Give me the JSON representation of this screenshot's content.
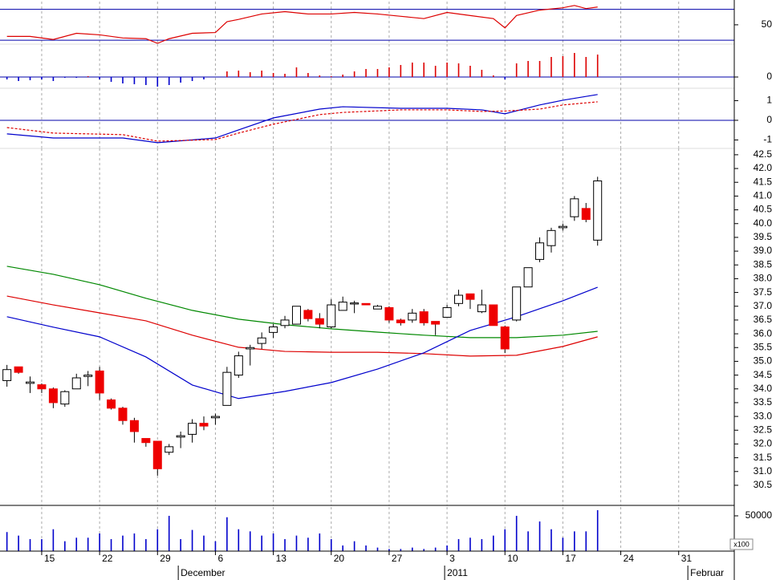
{
  "chart_data": [
    {
      "type": "line",
      "xlim": [
        -0.6,
        62.8
      ],
      "ylim": [
        25,
        80
      ],
      "yticks": [
        50
      ],
      "hlines": [
        70,
        30
      ],
      "hline_color": "#0000aa",
      "x": [
        0,
        2,
        4,
        6,
        8,
        10,
        12,
        13,
        14,
        16,
        18,
        19,
        20,
        22,
        24,
        26,
        28,
        30,
        32,
        34,
        36,
        38,
        40,
        42,
        43,
        44,
        46,
        48,
        49,
        50,
        51
      ],
      "series": [
        {
          "color": "#dd0000",
          "values": [
            35,
            35,
            31,
            39,
            37,
            33,
            32,
            26,
            32,
            39,
            40,
            54,
            57,
            64,
            67,
            64,
            64,
            66,
            64,
            61,
            58,
            66,
            62,
            58,
            46,
            62,
            69,
            72,
            75,
            71,
            73
          ]
        }
      ]
    },
    {
      "type": "bar",
      "xlim": [
        -0.6,
        62.8
      ],
      "ylim": [
        -1.4,
        4.1
      ],
      "yticks": [
        0
      ],
      "hlines": [
        0
      ],
      "hline_color": "#0000aa",
      "up_color": "#dd0000",
      "down_color": "#0000cc",
      "x": [
        0,
        1,
        2,
        3,
        4,
        5,
        6,
        7,
        8,
        9,
        10,
        11,
        12,
        13,
        14,
        15,
        16,
        17,
        18,
        19,
        20,
        21,
        22,
        23,
        24,
        25,
        26,
        27,
        28,
        29,
        30,
        31,
        32,
        33,
        34,
        35,
        36,
        37,
        38,
        39,
        40,
        41,
        42,
        43,
        44,
        45,
        46,
        47,
        48,
        49,
        50,
        51
      ],
      "values": [
        -0.3,
        -0.5,
        -0.4,
        -0.3,
        -0.5,
        -0.1,
        -0.1,
        0.1,
        -0.3,
        -0.6,
        -0.8,
        -0.9,
        -1.0,
        -1.2,
        -1.0,
        -0.7,
        -0.5,
        -0.3,
        0.0,
        0.7,
        0.8,
        0.6,
        0.8,
        0.5,
        0.4,
        1.2,
        0.5,
        0.2,
        0.1,
        0.3,
        0.7,
        1.0,
        1.0,
        1.2,
        1.5,
        1.8,
        1.8,
        1.4,
        1.8,
        1.7,
        1.4,
        0.9,
        0.2,
        -0.3,
        1.7,
        2.0,
        2.0,
        2.5,
        2.6,
        3.0,
        2.5,
        2.8
      ]
    },
    {
      "type": "line",
      "xlim": [
        -0.6,
        62.8
      ],
      "ylim": [
        -1.43,
        1.63
      ],
      "yticks": [
        -1,
        0,
        1
      ],
      "hlines": [
        0
      ],
      "hline_color": "#0000aa",
      "x": [
        0,
        4,
        10,
        13,
        18,
        20,
        23,
        27,
        29,
        34,
        38,
        41,
        43,
        46,
        48,
        51
      ],
      "series": [
        {
          "color": "#0000cc",
          "values": [
            -0.69,
            -0.9,
            -0.9,
            -1.14,
            -0.9,
            -0.49,
            0.12,
            0.57,
            0.69,
            0.61,
            0.61,
            0.53,
            0.33,
            0.78,
            1.02,
            1.31
          ]
        },
        {
          "color": "#dd0000",
          "style": "dashed",
          "values": [
            -0.37,
            -0.65,
            -0.73,
            -1.06,
            -0.98,
            -0.65,
            -0.2,
            0.29,
            0.4,
            0.53,
            0.53,
            0.45,
            0.47,
            0.57,
            0.78,
            0.94
          ]
        }
      ]
    },
    {
      "type": "candlestick",
      "xlim": [
        -0.6,
        62.8
      ],
      "ylim": [
        29.77,
        42.73
      ],
      "up_color": "#ffffff",
      "down_color": "#ee0000",
      "yticks": [
        30.5,
        {
          "value": 31,
          "label": "31.0"
        },
        31.5,
        {
          "value": 32,
          "label": "32.0"
        },
        32.5,
        {
          "value": 33,
          "label": "33.0"
        },
        33.5,
        {
          "value": 34,
          "label": "34.0"
        },
        34.5,
        {
          "value": 35,
          "label": "35.0"
        },
        35.5,
        {
          "value": 36,
          "label": "36.0"
        },
        36.5,
        {
          "value": 37,
          "label": "37.0"
        },
        37.5,
        {
          "value": 38,
          "label": "38.0"
        },
        38.5,
        {
          "value": 39,
          "label": "39.0"
        },
        39.5,
        {
          "value": 40,
          "label": "40.0"
        },
        40.5,
        {
          "value": 41,
          "label": "41.0"
        },
        41.5,
        {
          "value": 42,
          "label": "42.0"
        },
        42.5
      ],
      "x": [
        0,
        1,
        2,
        3,
        4,
        5,
        6,
        7,
        8,
        9,
        10,
        11,
        12,
        13,
        14,
        15,
        16,
        17,
        18,
        19,
        20,
        21,
        22,
        23,
        24,
        25,
        26,
        27,
        28,
        29,
        30,
        31,
        32,
        33,
        34,
        35,
        36,
        37,
        38,
        39,
        40,
        41,
        42,
        43,
        44,
        45,
        46,
        47,
        48,
        49,
        50,
        51
      ],
      "open": [
        34.3,
        34.8,
        34.2,
        34.15,
        34.0,
        33.45,
        34.0,
        34.45,
        34.65,
        33.6,
        33.3,
        32.85,
        32.2,
        32.1,
        31.7,
        32.25,
        32.35,
        32.75,
        32.95,
        33.4,
        34.5,
        35.45,
        35.65,
        36.05,
        36.3,
        36.35,
        36.85,
        36.55,
        36.25,
        36.85,
        37.08,
        37.1,
        36.9,
        36.95,
        36.5,
        36.5,
        36.8,
        36.45,
        36.6,
        37.1,
        37.45,
        36.8,
        37.05,
        36.25,
        36.5,
        37.7,
        38.7,
        39.2,
        39.85,
        40.25,
        40.55,
        39.4
      ],
      "high": [
        34.87,
        34.8,
        34.45,
        34.2,
        34.05,
        33.95,
        34.55,
        34.65,
        34.8,
        33.65,
        33.35,
        32.95,
        32.2,
        32.1,
        32.0,
        32.45,
        32.9,
        33.0,
        33.1,
        34.8,
        35.35,
        35.6,
        36.05,
        36.35,
        36.65,
        37.0,
        36.9,
        36.75,
        37.25,
        37.35,
        37.2,
        37.1,
        37.05,
        37.0,
        36.55,
        36.9,
        36.9,
        36.45,
        37.05,
        37.6,
        37.45,
        37.6,
        37.05,
        36.3,
        37.7,
        38.4,
        39.5,
        39.85,
        40.0,
        41.0,
        40.75,
        41.7
      ],
      "low": [
        34.08,
        34.55,
        33.85,
        33.85,
        33.3,
        33.35,
        34.0,
        34.1,
        33.6,
        33.25,
        32.7,
        32.05,
        31.9,
        30.85,
        31.6,
        31.85,
        32.05,
        32.5,
        32.7,
        33.4,
        34.4,
        34.85,
        35.45,
        35.85,
        36.2,
        36.35,
        36.45,
        36.2,
        36.2,
        36.85,
        36.75,
        37.05,
        36.9,
        36.4,
        36.3,
        36.4,
        36.3,
        35.95,
        36.6,
        37.0,
        36.9,
        36.75,
        36.3,
        35.3,
        36.45,
        37.7,
        38.6,
        38.95,
        39.75,
        40.1,
        40.05,
        39.2
      ],
      "close": [
        34.7,
        34.6,
        34.25,
        34.0,
        33.5,
        33.9,
        34.4,
        34.5,
        33.85,
        33.3,
        32.85,
        32.45,
        32.05,
        31.1,
        31.9,
        32.3,
        32.75,
        32.65,
        33.0,
        34.6,
        35.2,
        35.5,
        35.85,
        36.25,
        36.5,
        37.0,
        36.55,
        36.35,
        37.05,
        37.15,
        37.12,
        37.05,
        37.0,
        36.5,
        36.4,
        36.75,
        36.4,
        36.35,
        36.95,
        37.4,
        37.25,
        37.05,
        36.3,
        35.45,
        37.7,
        38.4,
        39.3,
        39.75,
        39.9,
        40.9,
        40.15,
        41.55
      ],
      "series": [
        {
          "color": "#008800",
          "x": [
            0,
            4,
            8,
            12,
            16,
            20,
            24,
            28,
            32,
            36,
            40,
            44,
            48,
            51
          ],
          "values": [
            38.45,
            38.16,
            37.78,
            37.29,
            36.85,
            36.53,
            36.33,
            36.18,
            36.06,
            35.95,
            35.86,
            35.86,
            35.95,
            36.09
          ]
        },
        {
          "color": "#dd0000",
          "x": [
            0,
            4,
            8,
            12,
            16,
            20,
            24,
            28,
            32,
            36,
            40,
            44,
            48,
            51
          ],
          "values": [
            37.37,
            37.05,
            36.76,
            36.47,
            35.95,
            35.51,
            35.36,
            35.33,
            35.33,
            35.28,
            35.19,
            35.22,
            35.54,
            35.89
          ]
        },
        {
          "color": "#0000cc",
          "x": [
            0,
            4,
            8,
            12,
            16,
            20,
            24,
            28,
            32,
            36,
            40,
            44,
            48,
            51
          ],
          "values": [
            36.62,
            36.24,
            35.89,
            35.16,
            34.14,
            33.65,
            33.91,
            34.23,
            34.72,
            35.31,
            36.12,
            36.62,
            37.2,
            37.69
          ]
        }
      ]
    },
    {
      "type": "bar",
      "xlim": [
        -0.6,
        62.8
      ],
      "ylim": [
        0,
        62500
      ],
      "yticks": [
        50000
      ],
      "color": "#0000cc",
      "unit_label": "x100",
      "x": [
        0,
        1,
        2,
        3,
        4,
        5,
        6,
        7,
        8,
        9,
        10,
        11,
        12,
        13,
        14,
        15,
        16,
        17,
        18,
        19,
        20,
        21,
        22,
        23,
        24,
        25,
        26,
        27,
        28,
        29,
        30,
        31,
        32,
        33,
        34,
        35,
        36,
        37,
        38,
        39,
        40,
        41,
        42,
        43,
        44,
        45,
        46,
        47,
        48,
        49,
        50,
        51
      ],
      "values": [
        27000,
        22000,
        17000,
        17000,
        31000,
        14000,
        19000,
        19000,
        25000,
        17000,
        22000,
        25000,
        17000,
        31000,
        50000,
        17000,
        30000,
        22000,
        14000,
        48000,
        31000,
        28000,
        22000,
        25000,
        17000,
        22000,
        19000,
        25000,
        17000,
        8000,
        14000,
        8000,
        5000,
        3000,
        3000,
        5000,
        3000,
        5000,
        8000,
        17000,
        19000,
        17000,
        22000,
        31000,
        50000,
        28000,
        42000,
        31000,
        19000,
        28000,
        28000,
        58000
      ],
      "xticks": [
        {
          "value": 3,
          "label": "15"
        },
        {
          "value": 8,
          "label": "22"
        },
        {
          "value": 13,
          "label": "29"
        },
        {
          "value": 18,
          "label": "6"
        },
        {
          "value": 23,
          "label": "13"
        },
        {
          "value": 28,
          "label": "20"
        },
        {
          "value": 33,
          "label": "27"
        },
        {
          "value": 38,
          "label": "3"
        },
        {
          "value": 43,
          "label": "10"
        },
        {
          "value": 48,
          "label": "17"
        },
        {
          "value": 53,
          "label": "24"
        },
        {
          "value": 58,
          "label": "31"
        }
      ],
      "month_ticks": [
        {
          "value": 15,
          "label": "December"
        },
        {
          "value": 38,
          "label": "2011"
        },
        {
          "value": 59,
          "label": "Februar"
        }
      ]
    }
  ]
}
